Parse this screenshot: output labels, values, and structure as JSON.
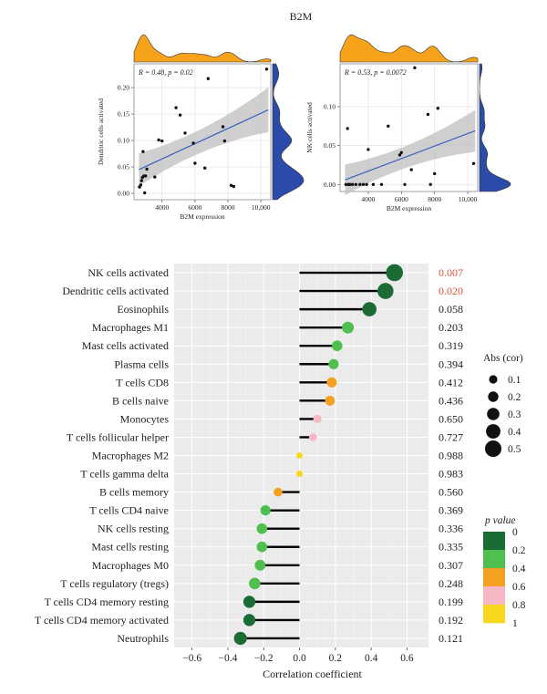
{
  "figure_title": "B2M",
  "colors": {
    "density_top": "#f6a21a",
    "density_right": "#2b4bab",
    "panel_bg": "#ebebeb",
    "scatter_bg": "#ffffff",
    "ci_band": "#bfbfbf",
    "fit_line": "#3b5fc0",
    "stick": "#000000",
    "sig_text": "#e8503a",
    "p_colors": [
      "#1a6b34",
      "#4fbf4f",
      "#f4a021",
      "#f7b8c6",
      "#f7d81e"
    ]
  },
  "chart_data": [
    {
      "type": "scatter",
      "panel": "left",
      "annotation": "R = 0.48, p = 0.02",
      "xlabel": "B2M expression",
      "ylabel": "Dendritic cells activated",
      "xlim": [
        2300,
        10600
      ],
      "ylim": [
        -0.012,
        0.245
      ],
      "xticks": [
        4000,
        6000,
        8000,
        10000
      ],
      "xtick_labels": [
        "4000",
        "6000",
        "8000",
        "10,000"
      ],
      "yticks": [
        0.0,
        0.05,
        0.1,
        0.15,
        0.2
      ],
      "ytick_labels": [
        "0.00",
        "0.05",
        "0.10",
        "0.15",
        "0.20"
      ],
      "fit": {
        "x": [
          2600,
          10450
        ],
        "y": [
          0.045,
          0.158
        ]
      },
      "points": [
        {
          "x": 2630,
          "y": 0.012
        },
        {
          "x": 2710,
          "y": 0.016
        },
        {
          "x": 2760,
          "y": 0.024
        },
        {
          "x": 2810,
          "y": 0.03
        },
        {
          "x": 2850,
          "y": 0.079
        },
        {
          "x": 2900,
          "y": 0.033
        },
        {
          "x": 2950,
          "y": 0.001
        },
        {
          "x": 3000,
          "y": 0.033
        },
        {
          "x": 3080,
          "y": 0.046
        },
        {
          "x": 3560,
          "y": 0.031
        },
        {
          "x": 3800,
          "y": 0.101
        },
        {
          "x": 4000,
          "y": 0.099
        },
        {
          "x": 4850,
          "y": 0.162
        },
        {
          "x": 5100,
          "y": 0.148
        },
        {
          "x": 5400,
          "y": 0.114
        },
        {
          "x": 5900,
          "y": 0.095
        },
        {
          "x": 6000,
          "y": 0.057
        },
        {
          "x": 6600,
          "y": 0.048
        },
        {
          "x": 6800,
          "y": 0.217
        },
        {
          "x": 7700,
          "y": 0.126
        },
        {
          "x": 7800,
          "y": 0.099
        },
        {
          "x": 8200,
          "y": 0.015
        },
        {
          "x": 8350,
          "y": 0.013
        },
        {
          "x": 10350,
          "y": 0.235
        }
      ]
    },
    {
      "type": "scatter",
      "panel": "right",
      "annotation": "R = 0.53, p = 0.0072",
      "xlabel": "B2M expression",
      "ylabel": "NK cells activated",
      "xlim": [
        2300,
        10600
      ],
      "ylim": [
        -0.009,
        0.155
      ],
      "xticks": [
        4000,
        6000,
        8000,
        10000
      ],
      "xtick_labels": [
        "4000",
        "6000",
        "8000",
        "10,000"
      ],
      "yticks": [
        0.0,
        0.05,
        0.1
      ],
      "ytick_labels": [
        "0.00",
        "0.05",
        "0.10"
      ],
      "fit": {
        "x": [
          2600,
          10450
        ],
        "y": [
          0.006,
          0.069
        ]
      },
      "points": [
        {
          "x": 2650,
          "y": 0.0
        },
        {
          "x": 2800,
          "y": 0.0
        },
        {
          "x": 2900,
          "y": 0.0
        },
        {
          "x": 3050,
          "y": 0.0
        },
        {
          "x": 3250,
          "y": 0.0
        },
        {
          "x": 3500,
          "y": 0.0
        },
        {
          "x": 3700,
          "y": 0.0
        },
        {
          "x": 3900,
          "y": 0.0
        },
        {
          "x": 4300,
          "y": 0.0
        },
        {
          "x": 4800,
          "y": 0.0
        },
        {
          "x": 6200,
          "y": 0.0
        },
        {
          "x": 7750,
          "y": 0.0
        },
        {
          "x": 2750,
          "y": 0.072
        },
        {
          "x": 4000,
          "y": 0.045
        },
        {
          "x": 5200,
          "y": 0.075
        },
        {
          "x": 5900,
          "y": 0.038
        },
        {
          "x": 6000,
          "y": 0.041
        },
        {
          "x": 6600,
          "y": 0.019
        },
        {
          "x": 6800,
          "y": 0.15
        },
        {
          "x": 7600,
          "y": 0.09
        },
        {
          "x": 8000,
          "y": 0.014
        },
        {
          "x": 8200,
          "y": 0.098
        },
        {
          "x": 10350,
          "y": 0.027
        }
      ]
    },
    {
      "type": "lollipop",
      "xlabel": "Correlation coefficient",
      "xlim": [
        -0.7,
        0.72
      ],
      "xticks": [
        -0.6,
        -0.4,
        -0.2,
        0.0,
        0.2,
        0.4,
        0.6
      ],
      "xtick_labels": [
        "−0.6",
        "−0.4",
        "−0.2",
        "0.0",
        "0.2",
        "0.4",
        "0.6"
      ],
      "size_legend_title": "Abs (cor)",
      "size_legend": [
        {
          "label": "0.1",
          "value": 0.1
        },
        {
          "label": "0.2",
          "value": 0.2
        },
        {
          "label": "0.3",
          "value": 0.3
        },
        {
          "label": "0.4",
          "value": 0.4
        },
        {
          "label": "0.5",
          "value": 0.5
        }
      ],
      "color_legend_title": "p value",
      "color_legend_labels": [
        "0",
        "0.2",
        "0.4",
        "0.6",
        "0.8",
        "1"
      ],
      "rows": [
        {
          "label": "NK cells activated",
          "cor": 0.53,
          "p": "0.007",
          "pclass": 0
        },
        {
          "label": "Dendritic cells activated",
          "cor": 0.48,
          "p": "0.020",
          "pclass": 0
        },
        {
          "label": "Eosinophils",
          "cor": 0.39,
          "p": "0.058",
          "pclass": 0
        },
        {
          "label": "Macrophages M1",
          "cor": 0.27,
          "p": "0.203",
          "pclass": 1
        },
        {
          "label": "Mast cells activated",
          "cor": 0.21,
          "p": "0.319",
          "pclass": 1
        },
        {
          "label": "Plasma cells",
          "cor": 0.19,
          "p": "0.394",
          "pclass": 1
        },
        {
          "label": "T cells CD8",
          "cor": 0.18,
          "p": "0.412",
          "pclass": 2
        },
        {
          "label": "B cells naive",
          "cor": 0.17,
          "p": "0.436",
          "pclass": 2
        },
        {
          "label": "Monocytes",
          "cor": 0.1,
          "p": "0.650",
          "pclass": 3
        },
        {
          "label": "T cells follicular helper",
          "cor": 0.075,
          "p": "0.727",
          "pclass": 3
        },
        {
          "label": "Macrophages M2",
          "cor": 0.0,
          "p": "0.988",
          "pclass": 4
        },
        {
          "label": "T cells gamma delta",
          "cor": 0.0,
          "p": "0.983",
          "pclass": 4
        },
        {
          "label": "B cells memory",
          "cor": -0.12,
          "p": "0.560",
          "pclass": 2
        },
        {
          "label": "T cells CD4 naive",
          "cor": -0.19,
          "p": "0.369",
          "pclass": 1
        },
        {
          "label": "NK cells resting",
          "cor": -0.21,
          "p": "0.336",
          "pclass": 1
        },
        {
          "label": "Mast cells resting",
          "cor": -0.21,
          "p": "0.335",
          "pclass": 1
        },
        {
          "label": "Macrophages M0",
          "cor": -0.22,
          "p": "0.307",
          "pclass": 1
        },
        {
          "label": "T cells regulatory (tregs)",
          "cor": -0.25,
          "p": "0.248",
          "pclass": 1
        },
        {
          "label": "T cells CD4 memory resting",
          "cor": -0.28,
          "p": "0.199",
          "pclass": 0
        },
        {
          "label": "T cells CD4 memory activated",
          "cor": -0.28,
          "p": "0.192",
          "pclass": 0
        },
        {
          "label": "Neutrophils",
          "cor": -0.33,
          "p": "0.121",
          "pclass": 0
        }
      ]
    }
  ]
}
